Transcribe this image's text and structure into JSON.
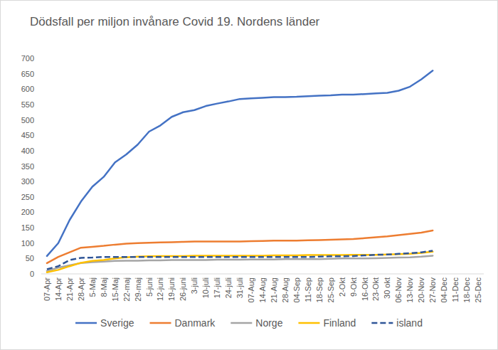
{
  "chart_data": {
    "type": "line",
    "title": "Dödsfall per miljon invånare Covid 19. Nordens länder",
    "categories": [
      "07-Apr",
      "14-Apr",
      "21-Apr",
      "28-Apr",
      "5-Maj",
      "8-Maj",
      "15-Maj",
      "22-maj",
      "29-maj",
      "5-juni",
      "12-juni",
      "19-juni",
      "26-juni",
      "3-juli",
      "10-juli",
      "17-juli",
      "24-juli",
      "31-juli",
      "07-Aug",
      "14-Aug",
      "21-Aug",
      "28-Aug",
      "04-Sep",
      "11-Sep",
      "18-Sep",
      "25-Sep",
      "2-Okt",
      "9-Okt",
      "16-Okt",
      "23-Okt",
      "30 okt",
      "06-Nov",
      "13-Nov",
      "20-Nov",
      "27-Nov",
      "04-Dec",
      "11-Dec",
      "18-Dec",
      "25-Dec"
    ],
    "series": [
      {
        "name": "Sverige",
        "color": "#4472c4",
        "line_style": "solid",
        "values": [
          58,
          100,
          175,
          235,
          283,
          315,
          362,
          388,
          420,
          462,
          482,
          510,
          525,
          532,
          545,
          553,
          560,
          568,
          570,
          572,
          574,
          574,
          575,
          577,
          579,
          580,
          582,
          582,
          584,
          586,
          588,
          595,
          608,
          632,
          660,
          null,
          null,
          null,
          null
        ]
      },
      {
        "name": "Danmark",
        "color": "#ed7d31",
        "line_style": "solid",
        "values": [
          35,
          55,
          70,
          85,
          88,
          91,
          95,
          98,
          100,
          101,
          102,
          103,
          104,
          105,
          105,
          105,
          105,
          105,
          106,
          107,
          108,
          108,
          108,
          109,
          110,
          111,
          112,
          113,
          116,
          119,
          122,
          126,
          130,
          134,
          141,
          null,
          null,
          null,
          null
        ]
      },
      {
        "name": "Norge",
        "color": "#a5a5a5",
        "line_style": "solid",
        "values": [
          10,
          20,
          28,
          35,
          38,
          40,
          42,
          43,
          43,
          44,
          44,
          45,
          45,
          45,
          45,
          46,
          46,
          46,
          47,
          47,
          47,
          48,
          48,
          48,
          48,
          49,
          50,
          50,
          50,
          51,
          52,
          53,
          54,
          56,
          59,
          null,
          null,
          null,
          null
        ]
      },
      {
        "name": "Finland",
        "color": "#ffc000",
        "line_style": "solid",
        "values": [
          5,
          13,
          25,
          36,
          42,
          45,
          50,
          54,
          56,
          57,
          58,
          58,
          58,
          59,
          59,
          59,
          59,
          59,
          59,
          59,
          60,
          60,
          60,
          61,
          61,
          61,
          61,
          62,
          62,
          62,
          63,
          64,
          65,
          68,
          72,
          null,
          null,
          null,
          null
        ]
      },
      {
        "name": "island",
        "color": "#2f5597",
        "line_style": "dashed",
        "values": [
          15,
          25,
          45,
          52,
          53,
          55,
          55,
          55,
          55,
          55,
          55,
          55,
          55,
          55,
          55,
          55,
          55,
          55,
          55,
          55,
          55,
          55,
          55,
          55,
          56,
          57,
          57,
          58,
          60,
          62,
          63,
          65,
          67,
          70,
          75,
          null,
          null,
          null,
          null
        ]
      }
    ],
    "ylim": [
      0,
      700
    ],
    "yticks": [
      0,
      50,
      100,
      150,
      200,
      250,
      300,
      350,
      400,
      450,
      500,
      550,
      600,
      650,
      700
    ],
    "grid": false,
    "legend": "bottom"
  }
}
